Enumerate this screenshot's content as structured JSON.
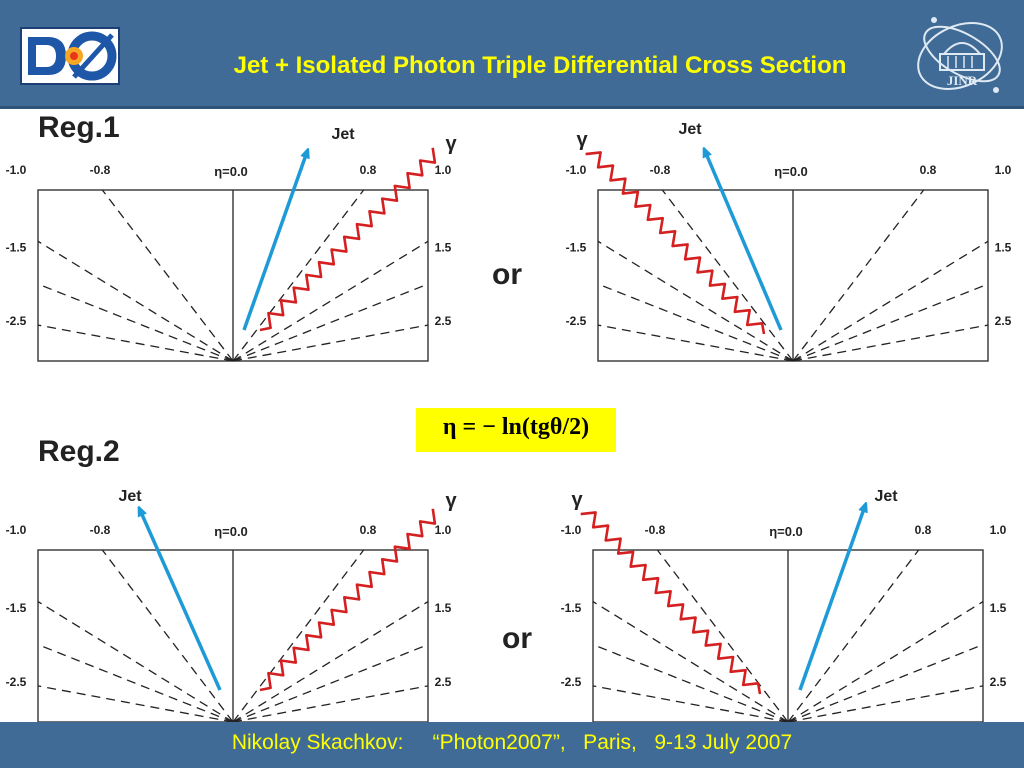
{
  "header": {
    "title": "Jet + Isolated Photon Triple Differential Cross Section",
    "logo_left": "d0-logo",
    "logo_right": "jinr-logo",
    "logo_right_text": "JINR"
  },
  "footer": {
    "text": "Nikolay Skachkov:     “Photon2007”,   Paris,   9-13 July 2007"
  },
  "regions": [
    {
      "label": "Reg.1"
    },
    {
      "label": "Reg.2"
    }
  ],
  "or_label": "or",
  "formula": "η = − ln(tgθ/2)",
  "diagram_labels": {
    "jet": "Jet",
    "gamma": "γ",
    "eta_top": [
      "-1.0",
      "-0.8",
      "η=0.0",
      "0.8",
      "1.0"
    ],
    "eta_side": [
      "-1.5",
      "-2.5",
      "1.5",
      "2.5"
    ]
  },
  "colors": {
    "header_bg": "#3f6b96",
    "title": "#ffff00",
    "jet_arrow": "#1e9bd7",
    "photon": "#d42020",
    "formula_bg": "#ffff00"
  }
}
